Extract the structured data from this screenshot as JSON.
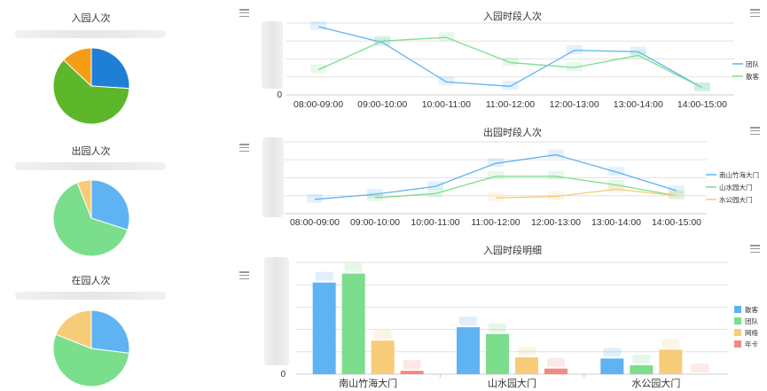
{
  "colors": {
    "blue": "#5fb3f2",
    "blue_dark": "#1f7fd6",
    "green": "#7bde8c",
    "green_dark": "#5cb82a",
    "orange": "#f7cc78",
    "orange_dark": "#f59d15",
    "red": "#f08a82",
    "grid": "#e2e2e2",
    "axis": "#cccccc"
  },
  "icons": {
    "menu": "hamburger-menu-icon"
  },
  "pies": [
    {
      "title": "入园人次"
    },
    {
      "title": "出园人次"
    },
    {
      "title": "在园人次"
    }
  ],
  "chart_data": [
    {
      "type": "pie",
      "title": "入园人次",
      "slices": [
        0.26,
        0.61,
        0.13
      ],
      "colors": [
        "#1f7fd6",
        "#5cb82a",
        "#f59d15"
      ]
    },
    {
      "type": "pie",
      "title": "出园人次",
      "slices": [
        0.3,
        0.64,
        0.06
      ],
      "colors": [
        "#5fb3f2",
        "#7bde8c",
        "#f7cc78"
      ]
    },
    {
      "type": "pie",
      "title": "在园人次",
      "slices": [
        0.27,
        0.54,
        0.19
      ],
      "colors": [
        "#5fb3f2",
        "#7bde8c",
        "#f7cc78"
      ]
    },
    {
      "type": "line",
      "title": "入园时段人次",
      "categories": [
        "08:00-09:00",
        "09:00-10:00",
        "10:00-11:00",
        "11:00-12:00",
        "12:00-13:00",
        "13:00-14:00",
        "14:00-15:00"
      ],
      "ylim": [
        0,
        100
      ],
      "y_ticks": [
        "0"
      ],
      "series": [
        {
          "name": "团队",
          "color": "#5fb3f2",
          "values": [
            95,
            73,
            18,
            12,
            62,
            60,
            10
          ]
        },
        {
          "name": "散客",
          "color": "#7bde8c",
          "values": [
            35,
            75,
            80,
            45,
            38,
            55,
            10
          ]
        }
      ]
    },
    {
      "type": "line",
      "title": "出园时段人次",
      "categories": [
        "08:00-09:00",
        "09:00-10:00",
        "10:00-11:00",
        "11:00-12:00",
        "12:00-13:00",
        "13:00-14:00",
        "14:00-15:00"
      ],
      "ylim": [
        0,
        100
      ],
      "series": [
        {
          "name": "南山竹海大门",
          "color": "#5fb3f2",
          "values": [
            20,
            27,
            38,
            70,
            82,
            58,
            32
          ]
        },
        {
          "name": "山水园大门",
          "color": "#7bde8c",
          "values": [
            null,
            22,
            28,
            52,
            52,
            40,
            25
          ]
        },
        {
          "name": "水公园大门",
          "color": "#f7cc78",
          "values": [
            null,
            null,
            null,
            22,
            24,
            34,
            25
          ]
        }
      ]
    },
    {
      "type": "bar",
      "title": "入园时段明细",
      "categories": [
        "南山竹海大门",
        "山水园大门",
        "水公园大门"
      ],
      "ylim": [
        0,
        100
      ],
      "y_ticks": [
        "0"
      ],
      "series": [
        {
          "name": "散客",
          "color": "#5fb3f2",
          "values": [
            82,
            42,
            14
          ]
        },
        {
          "name": "团队",
          "color": "#7bde8c",
          "values": [
            90,
            36,
            8
          ]
        },
        {
          "name": "网络",
          "color": "#f7cc78",
          "values": [
            30,
            15,
            22
          ]
        },
        {
          "name": "年卡",
          "color": "#f08a82",
          "values": [
            3,
            5,
            0
          ]
        }
      ]
    }
  ]
}
